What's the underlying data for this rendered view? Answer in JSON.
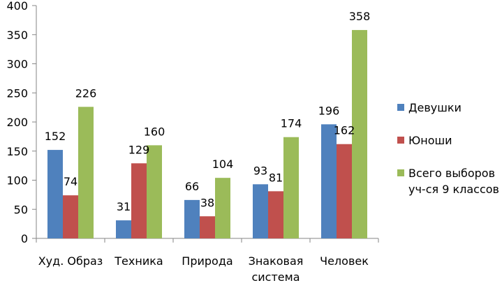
{
  "chart_data": {
    "type": "bar",
    "title": "",
    "xlabel": "",
    "ylabel": "",
    "ylim": [
      0,
      400
    ],
    "yticks": [
      0,
      50,
      100,
      150,
      200,
      250,
      300,
      350,
      400
    ],
    "grid": false,
    "legend_position": "right",
    "categories": [
      [
        "Худ. Образ"
      ],
      [
        "Техника"
      ],
      [
        "Природа"
      ],
      [
        "Знаковая",
        "система"
      ],
      [
        "Человек"
      ]
    ],
    "series": [
      {
        "name_lines": [
          "Девушки"
        ],
        "color": "#4F81BD",
        "values": [
          152,
          31,
          66,
          93,
          196
        ]
      },
      {
        "name_lines": [
          "Юноши"
        ],
        "color": "#C0504D",
        "values": [
          74,
          129,
          38,
          81,
          162
        ]
      },
      {
        "name_lines": [
          "Всего выборов",
          "уч-ся 9 классов"
        ],
        "color": "#9BBB59",
        "values": [
          226,
          160,
          104,
          174,
          358
        ]
      }
    ]
  }
}
